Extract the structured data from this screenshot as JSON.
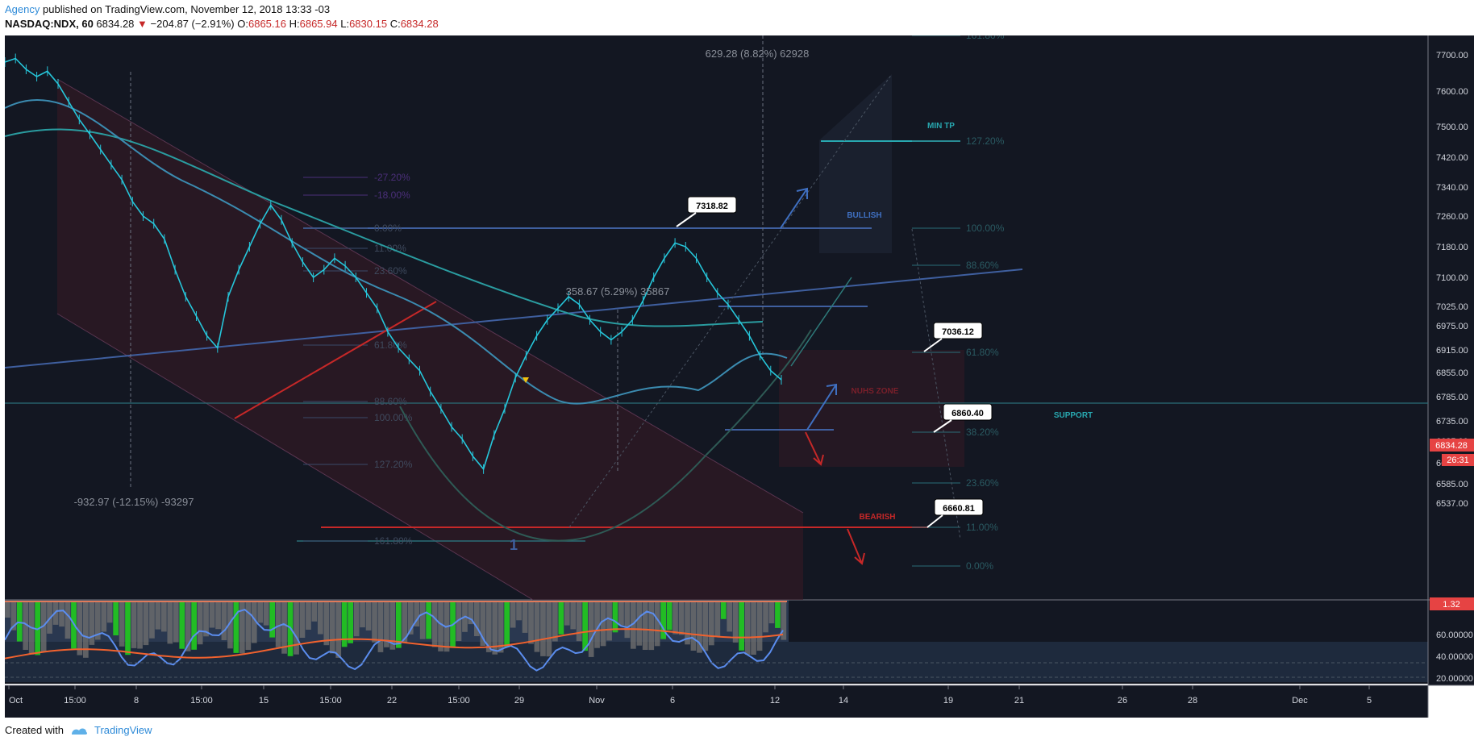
{
  "header": {
    "author": "Agency",
    "published_text": "published on TradingView.com, November 12, 2018 13:33 -03",
    "symbol": "NASDAQ:NDX, 60",
    "last": "6834.28",
    "arrow": "▼",
    "change": "−204.87 (−2.91%)",
    "open_label": "O:",
    "open": "6865.16",
    "high_label": "H:",
    "high": "6865.94",
    "low_label": "L:",
    "low": "6830.15",
    "close_label": "C:",
    "close": "6834.28"
  },
  "footer": {
    "created_with": "Created with",
    "brand": "TradingView"
  },
  "chart_data": {
    "type": "line",
    "title": "",
    "y_axis_labels": [
      "7700.00",
      "7600.00",
      "7500.00",
      "7420.00",
      "7340.00",
      "7260.00",
      "7180.00",
      "7100.00",
      "7025.00",
      "6975.00",
      "6915.00",
      "6855.00",
      "6785.00",
      "6735.00",
      "6685.00",
      "6635.00",
      "6585.00",
      "6537.00"
    ],
    "ylim": [
      6537,
      7720
    ],
    "x_axis_labels": [
      "Oct",
      "15:00",
      "8",
      "15:00",
      "15",
      "15:00",
      "22",
      "15:00",
      "29",
      "Nov",
      "6",
      "12",
      "14",
      "19",
      "21",
      "26",
      "28",
      "Dec",
      "5"
    ],
    "price_tag": "6834.28",
    "countdown_tag": "26:31",
    "series": [
      {
        "values": [
          7680,
          7690,
          7660,
          7640,
          7655,
          7620,
          7570,
          7520,
          7480,
          7440,
          7400,
          7360,
          7300,
          7260,
          7240,
          7200,
          7120,
          7050,
          7000,
          6950,
          6920,
          7050,
          7120,
          7180,
          7240,
          7290,
          7250,
          7190,
          7140,
          7100,
          7120,
          7150,
          7130,
          7100,
          7060,
          7020,
          6960,
          6920,
          6890,
          6860,
          6800,
          6760,
          6720,
          6690,
          6650,
          6620,
          6700,
          6760,
          6840,
          6900,
          6950,
          6990,
          7020,
          7050,
          7030,
          6990,
          6960,
          6940,
          6960,
          6990,
          7040,
          7100,
          7150,
          7190,
          7180,
          7150,
          7100,
          7060,
          7030,
          6990,
          6950,
          6900,
          6860,
          6834
        ]
      }
    ],
    "annotations": [
      {
        "text": "629.28 (8.82%) 62928"
      },
      {
        "text": "358.67 (5.29%) 35867"
      },
      {
        "text": "-932.97 (-12.15%) -93297"
      },
      {
        "text": "MIN TP"
      },
      {
        "text": "BULLISH"
      },
      {
        "text": "NUHS ZONE"
      },
      {
        "text": "SUPPORT"
      },
      {
        "text": "BEARISH"
      },
      {
        "text": "1"
      }
    ],
    "callouts": [
      "7318.82",
      "7036.12",
      "6860.40",
      "6660.81"
    ],
    "fib_left": [
      "-27.20%",
      "-18.00%",
      "0.00%",
      "11.00%",
      "23.60%",
      "61.80%",
      "88.60%",
      "100.00%",
      "127.20%",
      "161.80%"
    ],
    "fib_right": [
      "161.80%",
      "127.20%",
      "100.00%",
      "88.60%",
      "61.80%",
      "38.20%",
      "23.60%",
      "11.00%",
      "0.00%"
    ],
    "oscillator": {
      "y_axis_labels": [
        "60.00000",
        "40.00000",
        "20.00000"
      ],
      "value_tag": "1.32",
      "ylim": [
        15,
        90
      ]
    }
  }
}
